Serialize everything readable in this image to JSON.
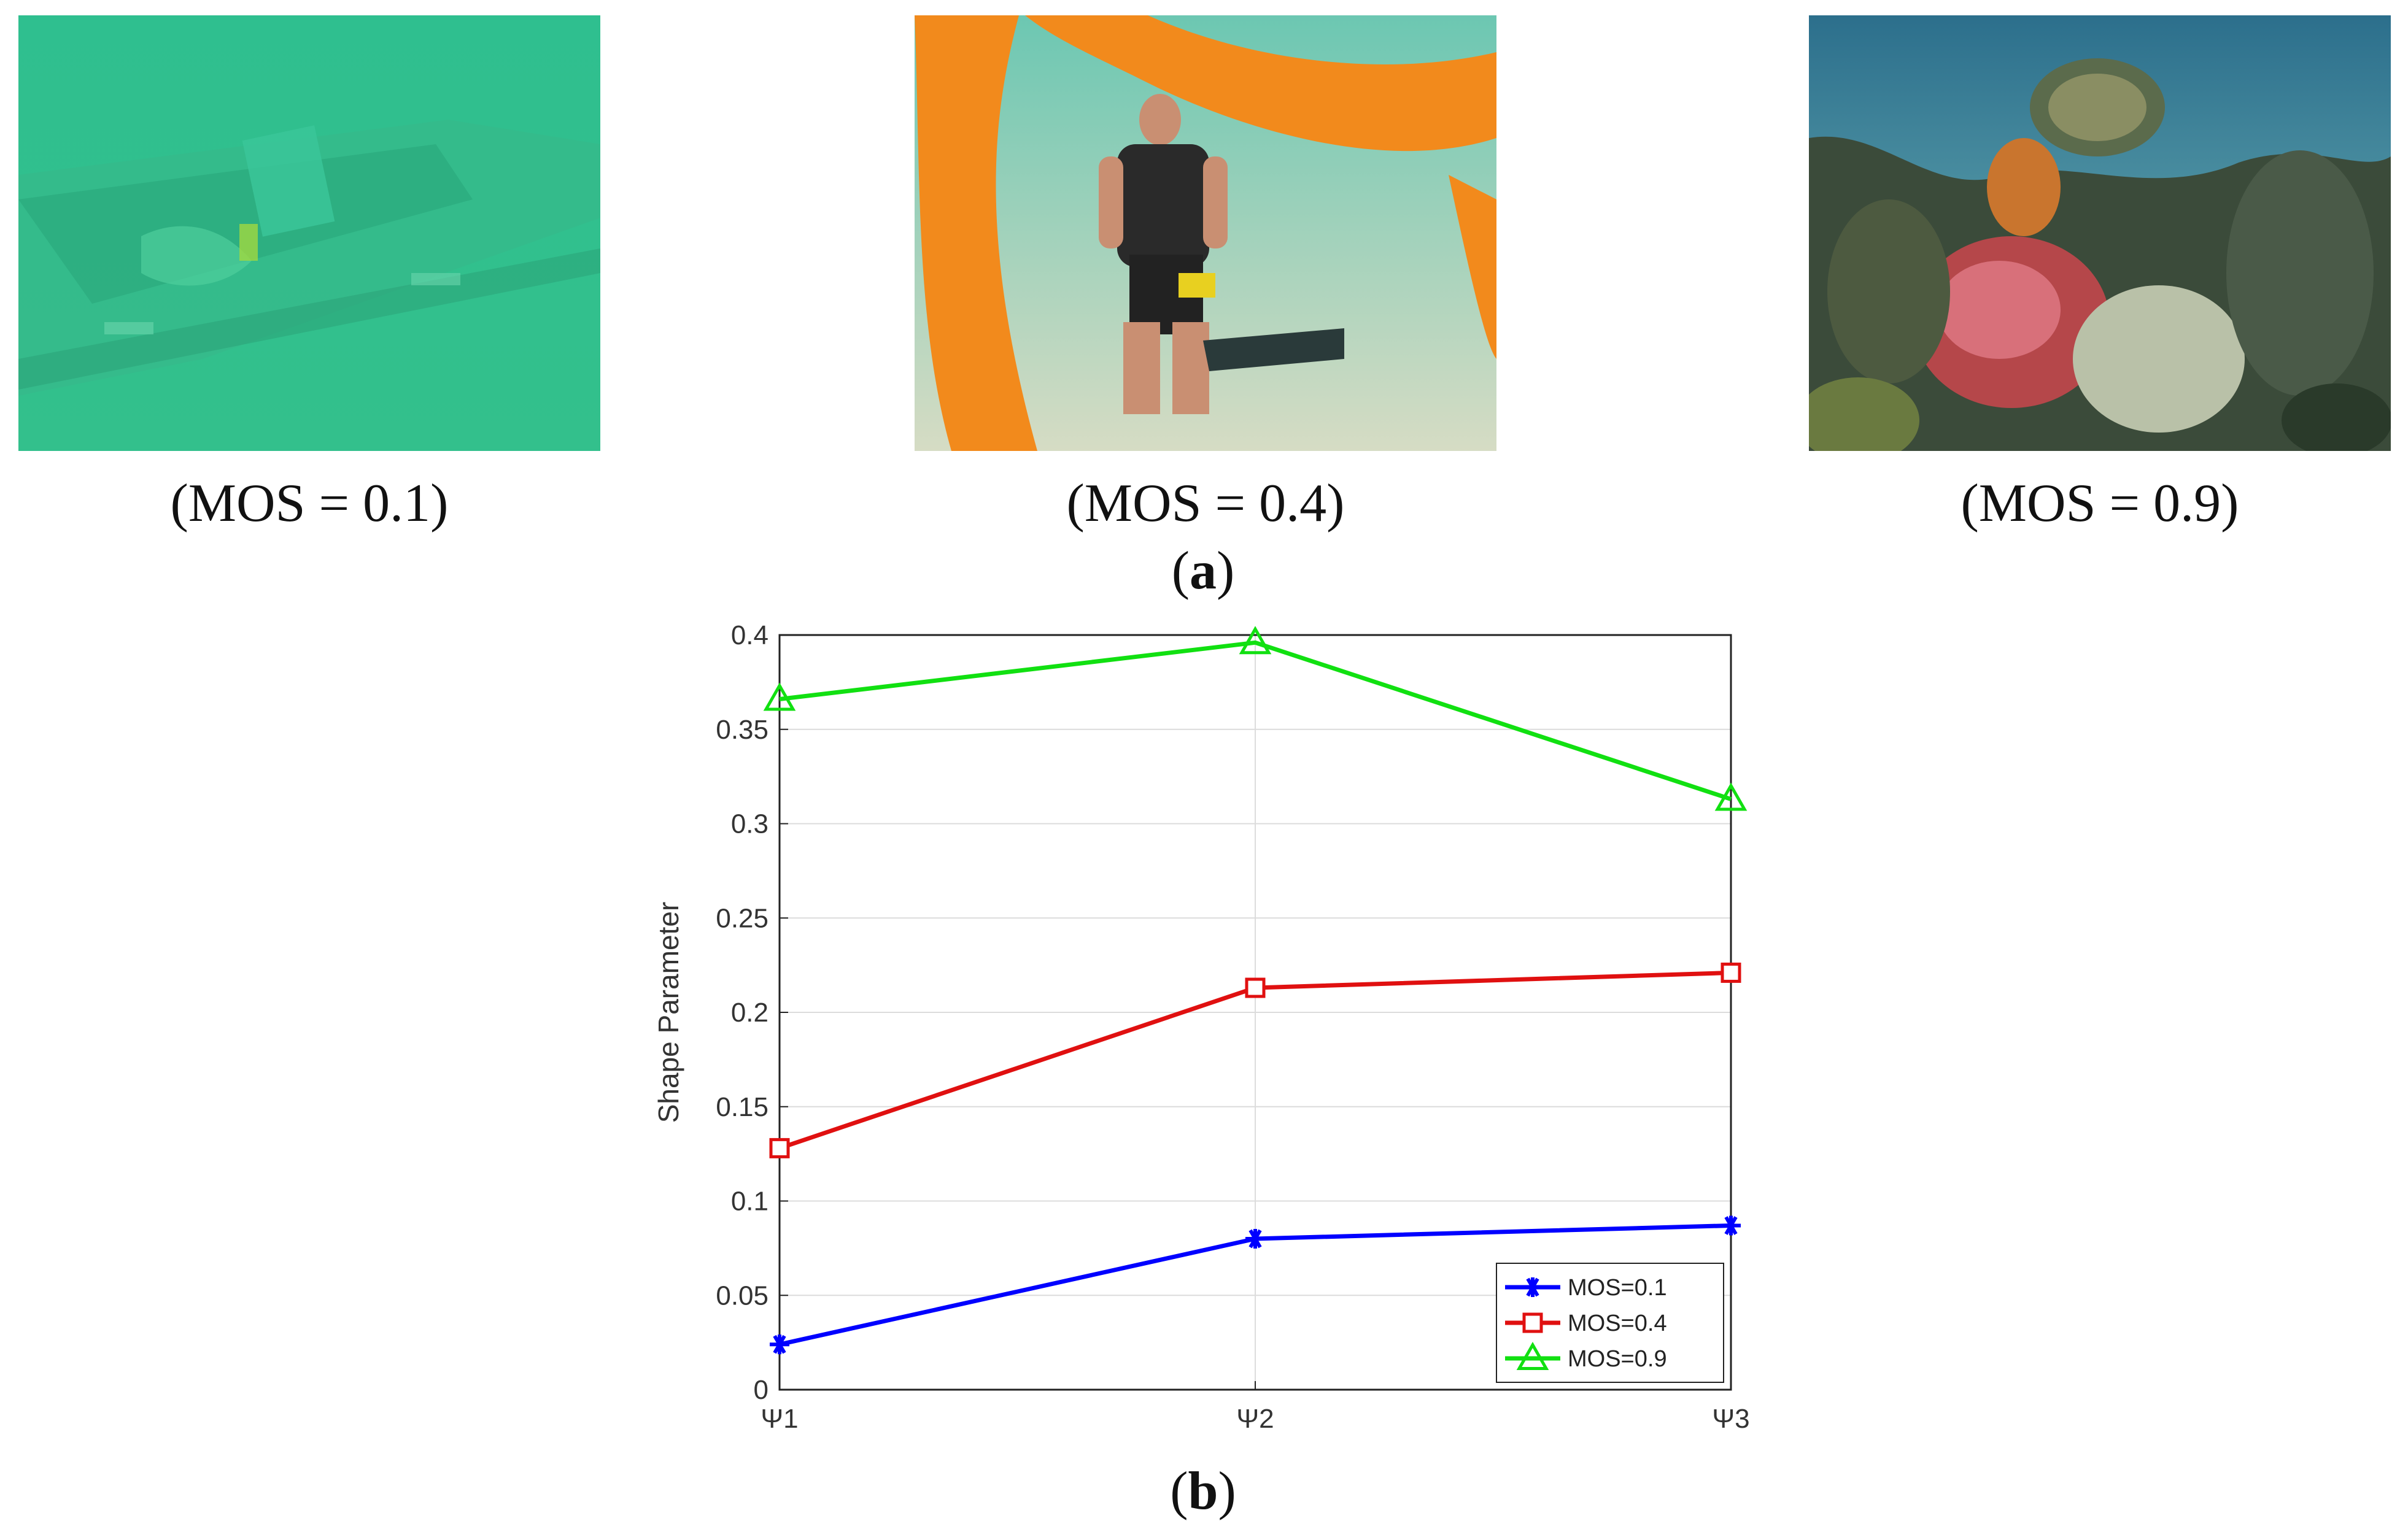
{
  "panel_a": {
    "label_open": "(",
    "label_letter": "a",
    "label_close": ")",
    "images": [
      {
        "caption": "(MOS = 0.1)",
        "scene": "murky green underwater wreck"
      },
      {
        "caption": "(MOS = 0.4)",
        "scene": "scuba diver kneeling on sand with orange tube"
      },
      {
        "caption": "(MOS = 0.9)",
        "scene": "colorful coral reef with sea turtle"
      }
    ]
  },
  "panel_b": {
    "label_open": "(",
    "label_letter": "b",
    "label_close": ")"
  },
  "chart_data": {
    "type": "line",
    "categories": [
      "Ψ1",
      "Ψ2",
      "Ψ3"
    ],
    "ylabel": "Shape Parameter",
    "xlabel": "",
    "ylim": [
      0,
      0.4
    ],
    "yticks": [
      0,
      0.05,
      0.1,
      0.15,
      0.2,
      0.25,
      0.3,
      0.35,
      0.4
    ],
    "ytick_labels": [
      "0",
      "0.05",
      "0.1",
      "0.15",
      "0.2",
      "0.25",
      "0.3",
      "0.35",
      "0.4"
    ],
    "grid": true,
    "legend_position": "bottom-right",
    "series": [
      {
        "name": "MOS=0.1",
        "values": [
          0.024,
          0.08,
          0.087
        ],
        "color": "#0000ff",
        "marker": "asterisk"
      },
      {
        "name": "MOS=0.4",
        "values": [
          0.128,
          0.213,
          0.221
        ],
        "color": "#e01010",
        "marker": "square"
      },
      {
        "name": "MOS=0.9",
        "values": [
          0.366,
          0.396,
          0.313
        ],
        "color": "#11e011",
        "marker": "triangle"
      }
    ]
  }
}
